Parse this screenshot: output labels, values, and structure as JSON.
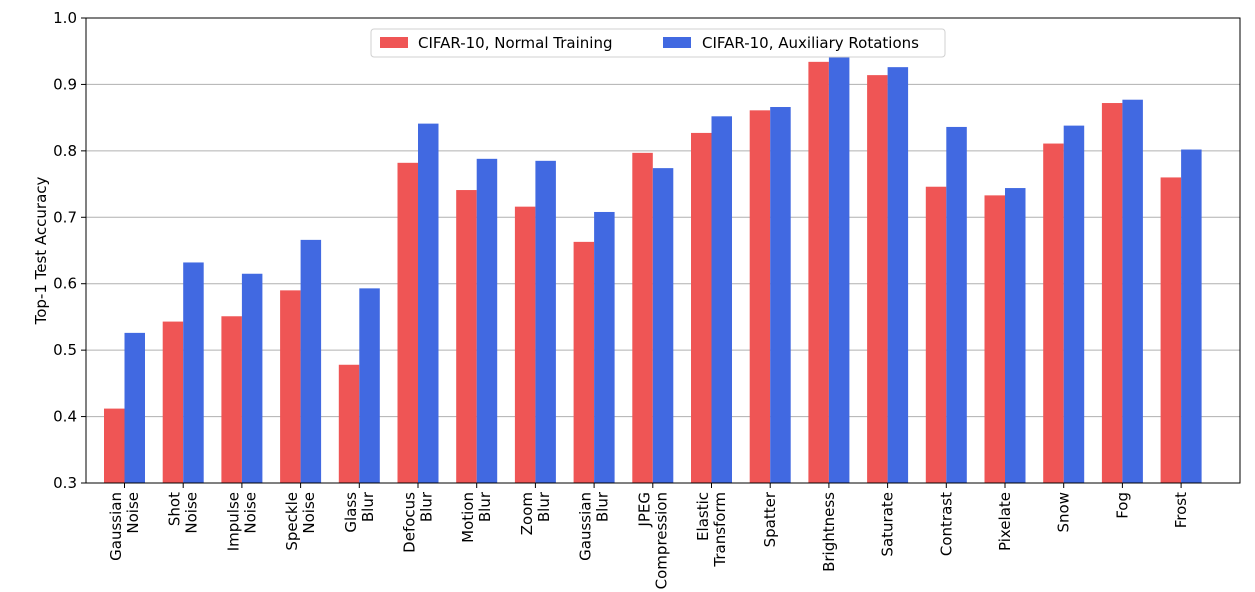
{
  "chart_data": {
    "type": "bar",
    "title": "",
    "xlabel": "",
    "ylabel": "Top-1 Test Accuracy",
    "ylim": [
      0.3,
      1.0
    ],
    "yticks": [
      "0.3",
      "0.4",
      "0.5",
      "0.6",
      "0.7",
      "0.8",
      "0.9",
      "1.0"
    ],
    "grid": "horizontal",
    "legend_position": "top-center",
    "categories": [
      [
        "Gaussian",
        "Noise"
      ],
      [
        "Shot",
        "Noise"
      ],
      [
        "Impulse",
        "Noise"
      ],
      [
        "Speckle",
        "Noise"
      ],
      [
        "Glass",
        "Blur"
      ],
      [
        "Defocus",
        "Blur"
      ],
      [
        "Motion",
        "Blur"
      ],
      [
        "Zoom",
        "Blur"
      ],
      [
        "Gaussian",
        "Blur"
      ],
      [
        "JPEG",
        "Compression"
      ],
      [
        "Elastic",
        "Transform"
      ],
      [
        "Spatter"
      ],
      [
        "Brightness"
      ],
      [
        "Saturate"
      ],
      [
        "Contrast"
      ],
      [
        "Pixelate"
      ],
      [
        "Snow"
      ],
      [
        "Fog"
      ],
      [
        "Frost"
      ]
    ],
    "series": [
      {
        "name": "CIFAR-10, Normal Training",
        "color": "#ef5555",
        "values": [
          0.412,
          0.543,
          0.551,
          0.59,
          0.478,
          0.782,
          0.741,
          0.716,
          0.663,
          0.797,
          0.827,
          0.861,
          0.934,
          0.914,
          0.746,
          0.733,
          0.811,
          0.872,
          0.76
        ]
      },
      {
        "name": "CIFAR-10, Auxiliary Rotations",
        "color": "#4169e1",
        "values": [
          0.526,
          0.632,
          0.615,
          0.666,
          0.593,
          0.841,
          0.788,
          0.785,
          0.708,
          0.774,
          0.852,
          0.866,
          0.941,
          0.926,
          0.836,
          0.744,
          0.838,
          0.877,
          0.802
        ]
      }
    ]
  }
}
